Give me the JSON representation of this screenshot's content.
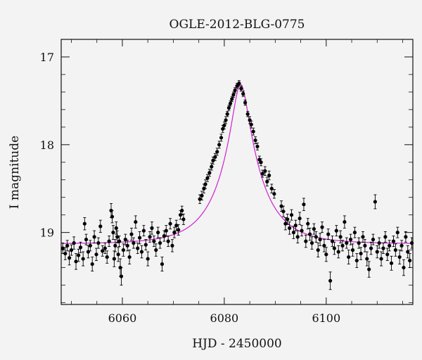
{
  "chart_data": {
    "type": "scatter",
    "title": "OGLE-2012-BLG-0775",
    "xlabel": "HJD - 2450000",
    "ylabel": "I magnitude",
    "xlim": [
      6048,
      6117
    ],
    "ylim": [
      19.82,
      16.8
    ],
    "y_inverted": true,
    "xticks": [
      6060,
      6080,
      6100
    ],
    "yticks": [
      17,
      18,
      19
    ],
    "grid": false,
    "legend": "none",
    "model_curve": {
      "color": "#d020d0",
      "t0": 6083.2,
      "u0": 0.19,
      "tE": 8.0,
      "baseline_mag": 19.13
    },
    "series": [
      {
        "marker_color": "#000000",
        "points": [
          [
            6048.3,
            19.18,
            0.06
          ],
          [
            6048.8,
            19.24,
            0.07
          ],
          [
            6049.2,
            19.15,
            0.06
          ],
          [
            6049.6,
            19.29,
            0.08
          ],
          [
            6050.0,
            19.2,
            0.06
          ],
          [
            6050.5,
            19.12,
            0.07
          ],
          [
            6050.9,
            19.33,
            0.09
          ],
          [
            6051.4,
            19.26,
            0.07
          ],
          [
            6051.8,
            19.17,
            0.06
          ],
          [
            6052.3,
            19.3,
            0.08
          ],
          [
            6052.6,
            18.9,
            0.07
          ],
          [
            6052.9,
            19.08,
            0.06
          ],
          [
            6053.3,
            19.22,
            0.07
          ],
          [
            6053.7,
            19.15,
            0.06
          ],
          [
            6054.1,
            19.36,
            0.08
          ],
          [
            6054.5,
            19.05,
            0.07
          ],
          [
            6054.9,
            19.25,
            0.07
          ],
          [
            6055.3,
            19.12,
            0.06
          ],
          [
            6055.7,
            18.93,
            0.07
          ],
          [
            6056.1,
            19.21,
            0.06
          ],
          [
            6056.6,
            19.18,
            0.06
          ],
          [
            6057.0,
            19.28,
            0.07
          ],
          [
            6057.4,
            19.1,
            0.06
          ],
          [
            6057.8,
            18.75,
            0.08
          ],
          [
            6058.0,
            18.82,
            0.07
          ],
          [
            6058.2,
            19.0,
            0.08
          ],
          [
            6058.4,
            19.3,
            0.09
          ],
          [
            6058.6,
            19.15,
            0.07
          ],
          [
            6058.8,
            18.95,
            0.07
          ],
          [
            6059.0,
            19.05,
            0.07
          ],
          [
            6059.2,
            19.25,
            0.08
          ],
          [
            6059.4,
            19.1,
            0.06
          ],
          [
            6059.6,
            19.4,
            0.1
          ],
          [
            6059.8,
            19.5,
            0.1
          ],
          [
            6060.2,
            19.2,
            0.07
          ],
          [
            6060.6,
            19.08,
            0.06
          ],
          [
            6061.0,
            19.15,
            0.06
          ],
          [
            6061.4,
            19.28,
            0.08
          ],
          [
            6061.8,
            19.02,
            0.07
          ],
          [
            6062.2,
            19.12,
            0.06
          ],
          [
            6062.6,
            18.88,
            0.07
          ],
          [
            6063.0,
            19.18,
            0.06
          ],
          [
            6063.4,
            19.06,
            0.07
          ],
          [
            6063.8,
            19.22,
            0.07
          ],
          [
            6064.2,
            18.98,
            0.06
          ],
          [
            6064.6,
            19.14,
            0.06
          ],
          [
            6065.0,
            19.3,
            0.08
          ],
          [
            6065.4,
            19.05,
            0.06
          ],
          [
            6065.8,
            18.95,
            0.07
          ],
          [
            6066.2,
            19.1,
            0.06
          ],
          [
            6066.6,
            19.2,
            0.07
          ],
          [
            6067.0,
            19.0,
            0.06
          ],
          [
            6067.4,
            19.12,
            0.06
          ],
          [
            6067.8,
            19.36,
            0.08
          ],
          [
            6068.2,
            19.04,
            0.06
          ],
          [
            6068.6,
            18.98,
            0.06
          ],
          [
            6069.0,
            19.1,
            0.06
          ],
          [
            6069.4,
            18.9,
            0.06
          ],
          [
            6069.8,
            19.15,
            0.07
          ],
          [
            6070.2,
            19.0,
            0.06
          ],
          [
            6070.6,
            18.92,
            0.06
          ],
          [
            6071.0,
            18.97,
            0.06
          ],
          [
            6071.4,
            18.8,
            0.05
          ],
          [
            6071.7,
            18.75,
            0.05
          ],
          [
            6072.0,
            18.85,
            0.06
          ],
          [
            6075.2,
            18.62,
            0.05
          ],
          [
            6075.6,
            18.58,
            0.05
          ],
          [
            6076.0,
            18.5,
            0.05
          ],
          [
            6076.3,
            18.45,
            0.05
          ],
          [
            6076.7,
            18.38,
            0.04
          ],
          [
            6077.1,
            18.32,
            0.04
          ],
          [
            6077.5,
            18.25,
            0.04
          ],
          [
            6077.8,
            18.18,
            0.04
          ],
          [
            6078.2,
            18.14,
            0.04
          ],
          [
            6078.6,
            18.08,
            0.04
          ],
          [
            6079.0,
            18.0,
            0.04
          ],
          [
            6079.4,
            17.92,
            0.04
          ],
          [
            6079.7,
            17.82,
            0.04
          ],
          [
            6080.0,
            17.78,
            0.04
          ],
          [
            6080.3,
            17.72,
            0.04
          ],
          [
            6080.6,
            17.65,
            0.03
          ],
          [
            6080.9,
            17.58,
            0.03
          ],
          [
            6081.2,
            17.53,
            0.03
          ],
          [
            6081.5,
            17.48,
            0.03
          ],
          [
            6081.8,
            17.43,
            0.03
          ],
          [
            6082.1,
            17.38,
            0.03
          ],
          [
            6082.5,
            17.33,
            0.03
          ],
          [
            6082.9,
            17.3,
            0.03
          ],
          [
            6083.3,
            17.36,
            0.03
          ],
          [
            6083.7,
            17.42,
            0.03
          ],
          [
            6084.1,
            17.52,
            0.03
          ],
          [
            6084.6,
            17.65,
            0.03
          ],
          [
            6085.0,
            17.72,
            0.04
          ],
          [
            6085.3,
            17.77,
            0.04
          ],
          [
            6085.7,
            17.85,
            0.04
          ],
          [
            6086.1,
            17.95,
            0.04
          ],
          [
            6086.5,
            18.02,
            0.04
          ],
          [
            6086.9,
            18.17,
            0.04
          ],
          [
            6087.2,
            18.2,
            0.04
          ],
          [
            6087.5,
            18.33,
            0.04
          ],
          [
            6088.0,
            18.3,
            0.05
          ],
          [
            6088.4,
            18.42,
            0.05
          ],
          [
            6088.8,
            18.35,
            0.05
          ],
          [
            6089.3,
            18.5,
            0.05
          ],
          [
            6089.8,
            18.56,
            0.05
          ],
          [
            6091.2,
            18.7,
            0.06
          ],
          [
            6091.6,
            18.76,
            0.06
          ],
          [
            6092.0,
            18.9,
            0.07
          ],
          [
            6092.4,
            18.85,
            0.06
          ],
          [
            6092.8,
            18.95,
            0.07
          ],
          [
            6093.2,
            18.8,
            0.06
          ],
          [
            6093.6,
            19.0,
            0.07
          ],
          [
            6094.0,
            18.92,
            0.06
          ],
          [
            6094.4,
            19.05,
            0.07
          ],
          [
            6094.8,
            18.84,
            0.07
          ],
          [
            6095.2,
            18.98,
            0.06
          ],
          [
            6095.6,
            18.68,
            0.07
          ],
          [
            6096.0,
            19.1,
            0.07
          ],
          [
            6096.4,
            18.9,
            0.06
          ],
          [
            6096.8,
            19.02,
            0.07
          ],
          [
            6097.2,
            19.12,
            0.07
          ],
          [
            6097.6,
            18.96,
            0.06
          ],
          [
            6098.0,
            19.05,
            0.06
          ],
          [
            6098.4,
            19.2,
            0.08
          ],
          [
            6098.8,
            19.08,
            0.07
          ],
          [
            6099.2,
            18.94,
            0.06
          ],
          [
            6099.6,
            19.15,
            0.07
          ],
          [
            6100.0,
            19.25,
            0.08
          ],
          [
            6100.4,
            19.02,
            0.06
          ],
          [
            6100.8,
            19.55,
            0.1
          ],
          [
            6101.2,
            19.1,
            0.06
          ],
          [
            6101.6,
            19.18,
            0.07
          ],
          [
            6102.0,
            18.98,
            0.06
          ],
          [
            6102.4,
            19.22,
            0.07
          ],
          [
            6102.8,
            19.05,
            0.07
          ],
          [
            6103.2,
            19.15,
            0.06
          ],
          [
            6103.6,
            18.88,
            0.07
          ],
          [
            6104.0,
            19.12,
            0.06
          ],
          [
            6104.4,
            19.28,
            0.08
          ],
          [
            6104.8,
            19.08,
            0.06
          ],
          [
            6105.2,
            19.2,
            0.07
          ],
          [
            6105.6,
            19.0,
            0.06
          ],
          [
            6106.0,
            19.32,
            0.08
          ],
          [
            6106.4,
            19.12,
            0.06
          ],
          [
            6106.8,
            19.24,
            0.07
          ],
          [
            6107.2,
            19.05,
            0.06
          ],
          [
            6107.6,
            19.15,
            0.07
          ],
          [
            6108.0,
            19.3,
            0.08
          ],
          [
            6108.4,
            19.42,
            0.09
          ],
          [
            6108.8,
            19.18,
            0.07
          ],
          [
            6109.2,
            19.08,
            0.06
          ],
          [
            6109.6,
            18.65,
            0.08
          ],
          [
            6110.0,
            19.22,
            0.07
          ],
          [
            6110.4,
            19.12,
            0.06
          ],
          [
            6110.8,
            19.3,
            0.08
          ],
          [
            6111.2,
            19.18,
            0.06
          ],
          [
            6111.6,
            19.05,
            0.06
          ],
          [
            6112.0,
            19.25,
            0.07
          ],
          [
            6112.4,
            19.15,
            0.06
          ],
          [
            6112.8,
            19.35,
            0.08
          ],
          [
            6113.2,
            19.1,
            0.06
          ],
          [
            6113.6,
            19.2,
            0.07
          ],
          [
            6114.0,
            19.0,
            0.06
          ],
          [
            6114.4,
            19.28,
            0.08
          ],
          [
            6114.8,
            19.15,
            0.06
          ],
          [
            6115.2,
            19.4,
            0.09
          ],
          [
            6115.6,
            19.05,
            0.06
          ],
          [
            6116.0,
            19.22,
            0.07
          ],
          [
            6116.4,
            19.32,
            0.08
          ],
          [
            6116.8,
            19.12,
            0.06
          ]
        ]
      }
    ]
  }
}
